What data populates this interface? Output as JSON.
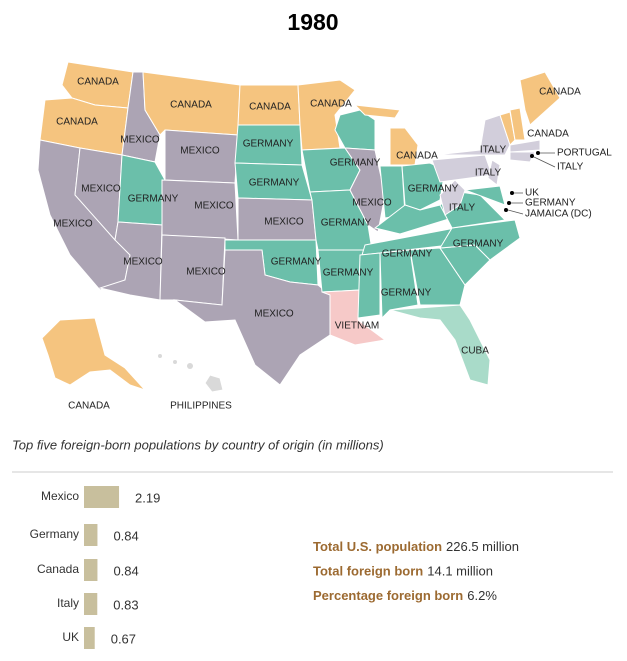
{
  "title": "1980",
  "map_labels": [
    "CANADA",
    "CANADA",
    "CANADA",
    "CANADA",
    "CANADA",
    "CANADA",
    "CANADA",
    "CANADA",
    "MEXICO",
    "MEXICO",
    "MEXICO",
    "MEXICO",
    "MEXICO",
    "MEXICO",
    "MEXICO",
    "MEXICO",
    "MEXICO",
    "MEXICO",
    "GERMANY",
    "GERMANY",
    "GERMANY",
    "GERMANY",
    "GERMANY",
    "GERMANY",
    "GERMANY",
    "GERMANY",
    "GERMANY",
    "GERMANY",
    "GERMANY",
    "ITALY",
    "ITALY",
    "ITALY",
    "ITALY",
    "PORTUGAL",
    "UK",
    "GERMANY",
    "JAMAICA (DC)",
    "VIETNAM",
    "CUBA",
    "CANADA",
    "PHILIPPINES"
  ],
  "chart_data": {
    "type": "bar",
    "orientation": "horizontal",
    "subtitle": "Top five foreign-born populations by country of origin (in millions)",
    "categories": [
      "Mexico",
      "Germany",
      "Canada",
      "Italy",
      "UK"
    ],
    "values": [
      2.19,
      0.84,
      0.84,
      0.83,
      0.67
    ],
    "color": "#c8bf9d"
  },
  "stats": [
    {
      "label": "Total U.S. population",
      "value": "226.5 million"
    },
    {
      "label": "Total foreign born",
      "value": "14.1 million"
    },
    {
      "label": "Percentage foreign born",
      "value": "6.2%"
    }
  ]
}
